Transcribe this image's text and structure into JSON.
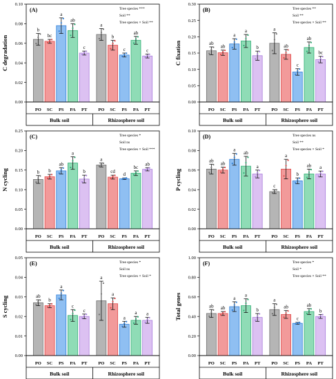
{
  "categories": [
    "PO",
    "SC",
    "PS",
    "PA",
    "PT"
  ],
  "groups": [
    "Bulk soil",
    "Rhizosphere soil"
  ],
  "colors": {
    "PO": "#b5b5b5",
    "SC": "#f29a9a",
    "PS": "#8fbff2",
    "PA": "#8fdcb6",
    "PT": "#dcc1f2",
    "PO_dark": "#707070",
    "SC_dark": "#e04848",
    "PS_dark": "#2f7fd8",
    "PA_dark": "#2fae74",
    "PT_dark": "#a97fdc"
  },
  "chart_data": [
    {
      "type": "bar",
      "panel": "(A)",
      "ylabel": "C degradation",
      "ylim": [
        0,
        0.1
      ],
      "yticks": [
        "0.00",
        "0.02",
        "0.04",
        "0.06",
        "0.08",
        "0.10"
      ],
      "stats": [
        "Tree species  ***",
        "Soil  **",
        "Tree species × Soil  **"
      ],
      "series": [
        {
          "name": "Bulk soil",
          "values": [
            0.064,
            0.062,
            0.078,
            0.073,
            0.05
          ],
          "errors": [
            0.006,
            0.002,
            0.008,
            0.007,
            0.002
          ],
          "letters": [
            "b",
            "bc",
            "a",
            "ab",
            "c"
          ]
        },
        {
          "name": "Rhizosphere soil",
          "values": [
            0.069,
            0.058,
            0.048,
            0.063,
            0.047
          ],
          "errors": [
            0.006,
            0.005,
            0.002,
            0.004,
            0.002
          ],
          "letters": [
            "a",
            "b",
            "c",
            "ab",
            "c"
          ]
        }
      ]
    },
    {
      "type": "bar",
      "panel": "(B)",
      "ylabel": "C fixation",
      "ylim": [
        0,
        0.3
      ],
      "yticks": [
        "0.00",
        "0.05",
        "0.10",
        "0.15",
        "0.20",
        "0.25",
        "0.30"
      ],
      "stats": [
        "Tree species  **",
        "Soil  **",
        "Tree species × Soil  **"
      ],
      "series": [
        {
          "name": "Bulk soil",
          "values": [
            0.157,
            0.151,
            0.178,
            0.187,
            0.142
          ],
          "errors": [
            0.012,
            0.008,
            0.016,
            0.02,
            0.014
          ],
          "letters": [
            "ab",
            "ab",
            "a",
            "a",
            "b"
          ]
        },
        {
          "name": "Rhizosphere soil",
          "values": [
            0.18,
            0.146,
            0.092,
            0.167,
            0.13
          ],
          "errors": [
            0.032,
            0.015,
            0.01,
            0.017,
            0.01
          ],
          "letters": [
            "a",
            "ab",
            "c",
            "ab",
            "bc"
          ]
        }
      ]
    },
    {
      "type": "bar",
      "panel": "(C)",
      "ylabel": "N cycling",
      "ylim": [
        0,
        0.25
      ],
      "yticks": [
        "0.00",
        "0.05",
        "0.10",
        "0.15",
        "0.20",
        "0.25"
      ],
      "stats": [
        "Tree species  *",
        "Soil  ns",
        "Tree species × Soil  ***"
      ],
      "series": [
        {
          "name": "Bulk soil",
          "values": [
            0.126,
            0.133,
            0.148,
            0.168,
            0.127
          ],
          "errors": [
            0.01,
            0.006,
            0.008,
            0.016,
            0.01
          ],
          "letters": [
            "b",
            "b",
            "ab",
            "a",
            "b"
          ]
        },
        {
          "name": "Rhizosphere soil",
          "values": [
            0.163,
            0.132,
            0.128,
            0.142,
            0.152
          ],
          "errors": [
            0.005,
            0.005,
            0.002,
            0.006,
            0.004
          ],
          "letters": [
            "a",
            "cd",
            "d",
            "bc",
            "ab"
          ]
        }
      ]
    },
    {
      "type": "bar",
      "panel": "(D)",
      "ylabel": "P cycling",
      "ylim": [
        0,
        0.1
      ],
      "yticks": [
        "0.00",
        "0.02",
        "0.04",
        "0.06",
        "0.08",
        "0.10"
      ],
      "stats": [
        "Tree species  ns",
        "Soil  **",
        "Tree species × Soil  *"
      ],
      "series": [
        {
          "name": "Bulk soil",
          "values": [
            0.061,
            0.06,
            0.071,
            0.064,
            0.056
          ],
          "errors": [
            0.005,
            0.003,
            0.006,
            0.01,
            0.004
          ],
          "letters": [
            "ab",
            "ab",
            "a",
            "ab",
            "a"
          ]
        },
        {
          "name": "Rhizosphere soil",
          "values": [
            0.038,
            0.061,
            0.049,
            0.056,
            0.056
          ],
          "errors": [
            0.002,
            0.01,
            0.003,
            0.005,
            0.003
          ],
          "letters": [
            "c",
            "a",
            "b",
            "ab",
            "a"
          ]
        }
      ]
    },
    {
      "type": "bar",
      "panel": "(E)",
      "ylabel": "S cycling",
      "ylim": [
        0,
        0.05
      ],
      "yticks": [
        "0.00",
        "0.01",
        "0.02",
        "0.03",
        "0.04",
        "0.05"
      ],
      "stats": [
        "Tree species  *",
        "Soil  ns",
        "Tree species × Soil  *"
      ],
      "series": [
        {
          "name": "Bulk soil",
          "values": [
            0.027,
            0.0255,
            0.031,
            0.0205,
            0.02
          ],
          "errors": [
            0.0015,
            0.001,
            0.0025,
            0.003,
            0.0012
          ],
          "letters": [
            "ab",
            "b",
            "a",
            "c",
            "c"
          ]
        },
        {
          "name": "Rhizosphere soil",
          "values": [
            0.028,
            0.0265,
            0.016,
            0.018,
            0.018
          ],
          "errors": [
            0.01,
            0.003,
            0.0015,
            0.002,
            0.0015
          ],
          "letters": [
            "a",
            "a",
            "a",
            "a",
            "a"
          ]
        }
      ]
    },
    {
      "type": "bar",
      "panel": "(F)",
      "ylabel": "Total genes",
      "ylim": [
        0,
        1.0
      ],
      "yticks": [
        "0.00",
        "0.20",
        "0.40",
        "0.60",
        "0.80",
        "1.00"
      ],
      "stats": [
        "Tree species  *",
        "Soil  *",
        "Tree species × Soil  **"
      ],
      "series": [
        {
          "name": "Bulk soil",
          "values": [
            0.43,
            0.43,
            0.5,
            0.51,
            0.39
          ],
          "errors": [
            0.04,
            0.02,
            0.05,
            0.07,
            0.04
          ],
          "letters": [
            "ab",
            "ab",
            "a",
            "a",
            "b"
          ]
        },
        {
          "name": "Rhizosphere soil",
          "values": [
            0.47,
            0.42,
            0.33,
            0.45,
            0.4
          ],
          "errors": [
            0.06,
            0.04,
            0.01,
            0.03,
            0.02
          ],
          "letters": [
            "a",
            "ab",
            "c",
            "ab",
            "b"
          ]
        }
      ]
    }
  ]
}
